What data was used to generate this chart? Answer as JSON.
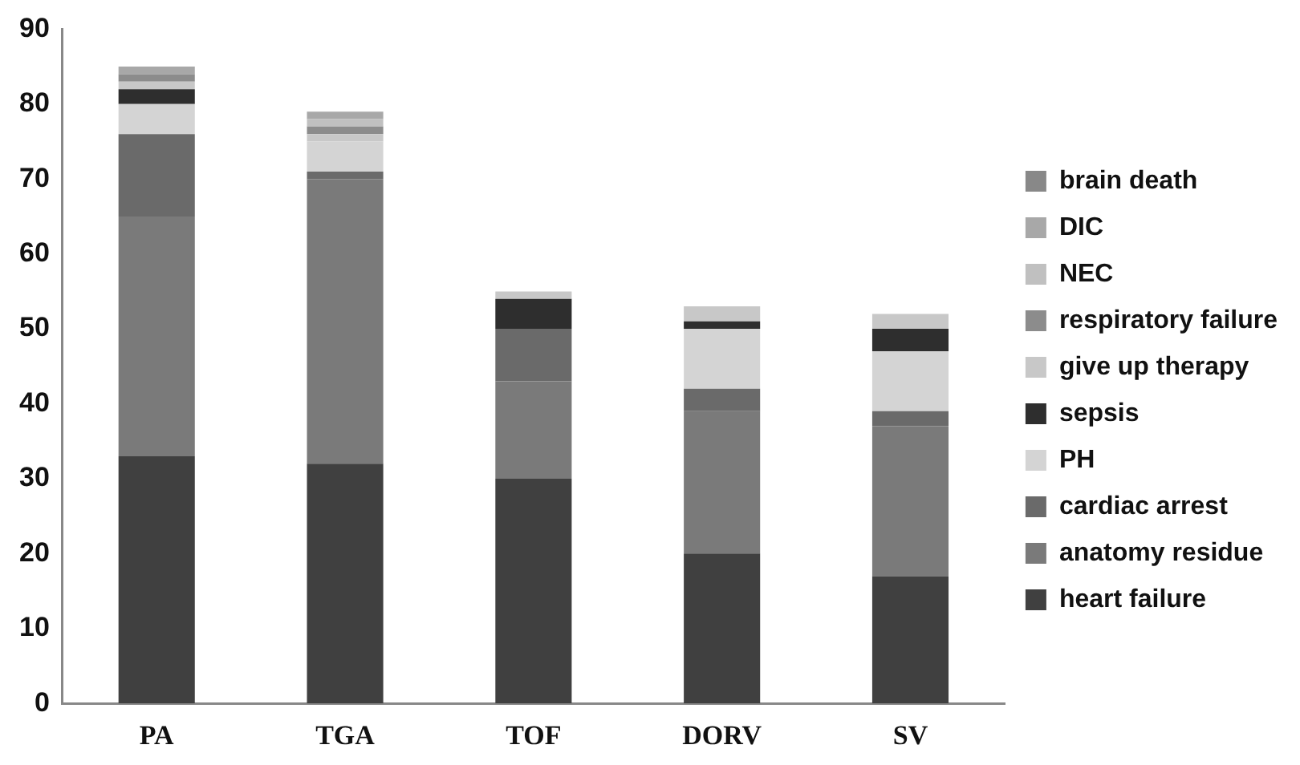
{
  "chart_data": {
    "type": "bar",
    "stacked": true,
    "categories": [
      "PA",
      "TGA",
      "TOF",
      "DORV",
      "SV"
    ],
    "series": [
      {
        "name": "heart failure",
        "color": "#404040",
        "values": [
          33,
          32,
          30,
          20,
          17
        ]
      },
      {
        "name": "anatomy residue",
        "color": "#7a7a7a",
        "values": [
          32,
          38,
          13,
          19,
          20
        ]
      },
      {
        "name": "cardiac arrest",
        "color": "#6a6a6a",
        "values": [
          11,
          1,
          7,
          3,
          2
        ]
      },
      {
        "name": "PH",
        "color": "#d4d4d4",
        "values": [
          4,
          4,
          0,
          8,
          8
        ]
      },
      {
        "name": "sepsis",
        "color": "#2e2e2e",
        "values": [
          2,
          0,
          4,
          1,
          3
        ]
      },
      {
        "name": "give up therapy",
        "color": "#c8c8c8",
        "values": [
          1,
          1,
          1,
          2,
          2
        ]
      },
      {
        "name": "respiratory failure",
        "color": "#8c8c8c",
        "values": [
          1,
          1,
          0,
          0,
          0
        ]
      },
      {
        "name": "NEC",
        "color": "#c0c0c0",
        "values": [
          0,
          1,
          0,
          0,
          0
        ]
      },
      {
        "name": "DIC",
        "color": "#a8a8a8",
        "values": [
          1,
          1,
          0,
          0,
          0
        ]
      },
      {
        "name": "brain death",
        "color": "#888888",
        "values": [
          0,
          0,
          0,
          0,
          0
        ]
      }
    ],
    "ylim": [
      0,
      90
    ],
    "yticks": [
      0,
      10,
      20,
      30,
      40,
      50,
      60,
      70,
      80,
      90
    ],
    "grid": false,
    "legend": "right"
  }
}
